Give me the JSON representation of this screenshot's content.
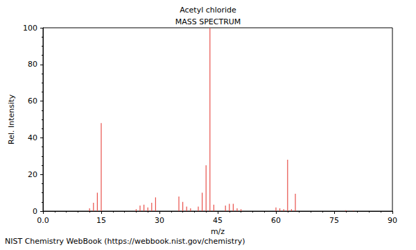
{
  "chart_data": {
    "type": "bar",
    "title": "Acetyl chloride",
    "subtitle": "MASS SPECTRUM",
    "xlabel": "m/z",
    "ylabel": "Rel. Intensity",
    "footnote": "NIST Chemistry WebBook (https://webbook.nist.gov/chemistry)",
    "x": [
      12,
      13,
      14,
      15,
      24,
      25,
      26,
      27,
      28,
      29,
      35,
      36,
      37,
      38,
      40,
      41,
      42,
      43,
      44,
      47,
      48,
      49,
      50,
      51,
      60,
      61,
      62,
      63,
      64,
      65,
      78,
      80
    ],
    "values": [
      1.5,
      4.5,
      10,
      48,
      1,
      3,
      3.5,
      2,
      4.5,
      7.5,
      8,
      5,
      2.5,
      1.5,
      2.5,
      10,
      25,
      100,
      3.5,
      3,
      4,
      4,
      1.5,
      1,
      2,
      1.5,
      1,
      28,
      1,
      9.5,
      0.5,
      0.3
    ],
    "color": "#e8504a",
    "xlim": [
      0,
      90
    ],
    "xticks": [
      {
        "value": 0,
        "label": "0.0"
      },
      15,
      30,
      45,
      60,
      75,
      90
    ],
    "ylim": [
      0,
      100
    ],
    "yticks": [
      0,
      20,
      40,
      60,
      80,
      100
    ],
    "grid": false
  }
}
